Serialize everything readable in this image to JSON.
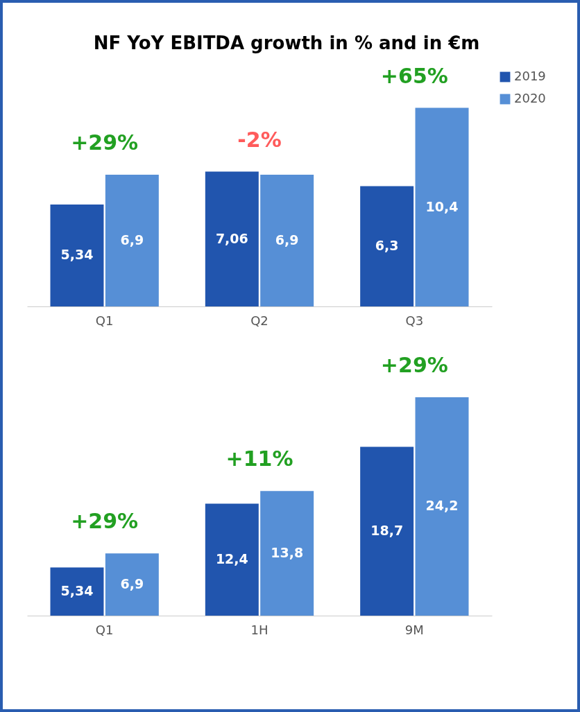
{
  "chart_data": [
    {
      "type": "bar",
      "title": "NF YoY EBITDA growth in % and in €m",
      "categories": [
        "Q1",
        "Q2",
        "Q3"
      ],
      "data_labels": true,
      "legend": "right",
      "series": [
        {
          "name": "2019",
          "color": "#2155ae",
          "values": [
            5.34,
            7.06,
            6.3
          ],
          "value_labels": [
            "5,34",
            "7,06",
            "6,3"
          ]
        },
        {
          "name": "2020",
          "color": "#568fd6",
          "values": [
            6.9,
            6.9,
            10.4
          ],
          "value_labels": [
            "6,9",
            "6,9",
            "10,4"
          ]
        }
      ],
      "annotations": [
        "+29%",
        "-2%",
        "+65%"
      ]
    },
    {
      "type": "bar",
      "categories": [
        "Q1",
        "1H",
        "9M"
      ],
      "data_labels": true,
      "series": [
        {
          "name": "2019",
          "color": "#2155ae",
          "values": [
            5.34,
            12.4,
            18.7
          ],
          "value_labels": [
            "5,34",
            "12,4",
            "18,7"
          ]
        },
        {
          "name": "2020",
          "color": "#568fd6",
          "values": [
            6.9,
            13.8,
            24.2
          ],
          "value_labels": [
            "6,9",
            "13,8",
            "24,2"
          ]
        }
      ],
      "annotations": [
        "+29%",
        "+11%",
        "+29%"
      ]
    }
  ]
}
